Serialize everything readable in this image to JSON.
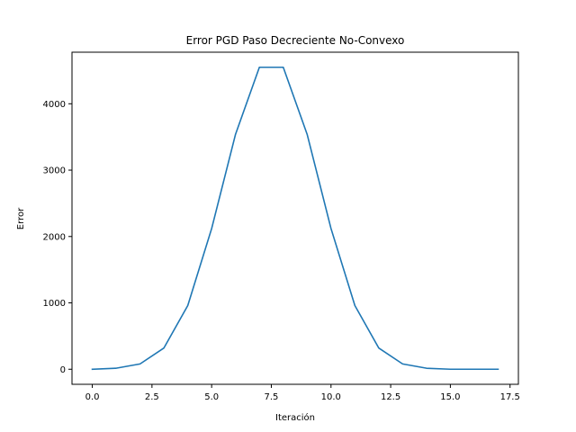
{
  "chart_data": {
    "type": "line",
    "title": "Error PGD Paso Decreciente No-Convexo",
    "xlabel": "Iteración",
    "ylabel": "Error",
    "xlim": [
      -0.85,
      17.85
    ],
    "ylim": [
      -227,
      4777
    ],
    "xticks": [
      0.0,
      2.5,
      5.0,
      7.5,
      10.0,
      12.5,
      15.0,
      17.5
    ],
    "xtick_labels": [
      "0.0",
      "2.5",
      "5.0",
      "7.5",
      "10.0",
      "12.5",
      "15.0",
      "17.5"
    ],
    "yticks": [
      0,
      1000,
      2000,
      3000,
      4000
    ],
    "ytick_labels": [
      "0",
      "1000",
      "2000",
      "3000",
      "4000"
    ],
    "grid": false,
    "color": "#1f77b4",
    "series": [
      {
        "x": [
          0,
          1,
          2,
          3,
          4,
          5,
          6,
          7,
          8,
          9,
          10,
          11,
          12,
          13,
          14,
          15,
          16,
          17
        ],
        "values": [
          0,
          15,
          80,
          320,
          960,
          2120,
          3540,
          4550,
          4550,
          3540,
          2120,
          960,
          320,
          80,
          15,
          0,
          0,
          0
        ]
      }
    ]
  }
}
